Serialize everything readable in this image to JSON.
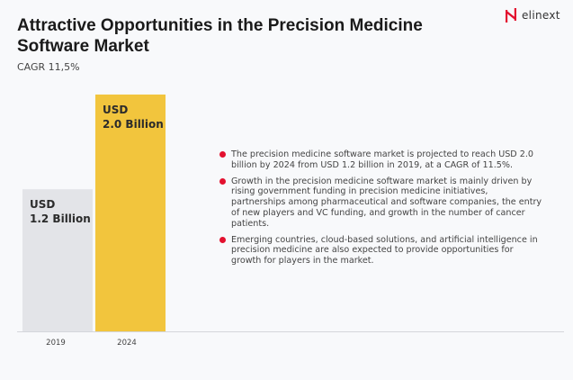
{
  "header": {
    "title": "Attractive Opportunities in the Precision Medicine Software Market",
    "subtitle": "CAGR 11,5%",
    "logo_text": "elinext"
  },
  "colors": {
    "accent": "#e3112f",
    "bar_2019": "#e3e4e8",
    "bar_2024": "#f2c53d"
  },
  "chart_data": {
    "type": "bar",
    "categories": [
      "2019",
      "2024"
    ],
    "values": [
      1.2,
      2.0
    ],
    "data_labels": [
      [
        "USD",
        "1.2 Billion"
      ],
      [
        "USD",
        "2.0 Billion"
      ]
    ],
    "unit": "USD Billion",
    "ylim": [
      0,
      2.0
    ],
    "grid": false
  },
  "bullets": [
    "The precision medicine software market is projected to reach USD 2.0 billion by 2024 from USD 1.2 billion in 2019, at a CAGR of 11.5%.",
    "Growth in the precision medicine software market is mainly driven by rising government funding in precision medicine initiatives, partnerships among pharmaceutical and software companies, the entry of new players and VC funding, and growth in the number of cancer patients.",
    "Emerging countries, cloud-based solutions, and artificial intelligence in precision medicine are also expected to provide opportunities for growth for players in the market."
  ]
}
